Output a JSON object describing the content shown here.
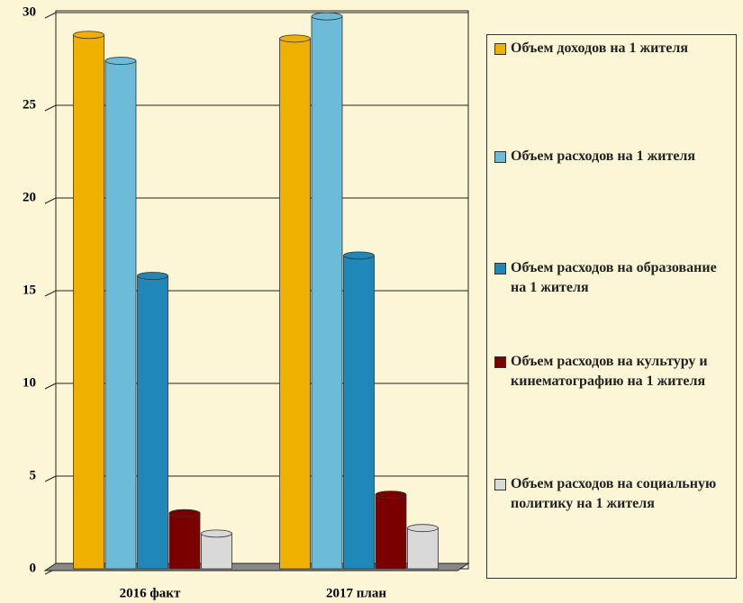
{
  "chart_data": {
    "type": "bar",
    "categories": [
      "2016 факт",
      "2017 план"
    ],
    "series": [
      {
        "name": "Объем доходов на 1 жителя",
        "color": "#f0b000",
        "values": [
          28.8,
          28.6
        ]
      },
      {
        "name": "Объем расходов на 1 жителя",
        "color": "#6cbbd8",
        "values": [
          27.4,
          29.8
        ]
      },
      {
        "name": "Объем расходов на образование на 1 жителя",
        "color": "#1f88b8",
        "values": [
          15.8,
          16.9
        ]
      },
      {
        "name": "Объем расходов на культуру и кинематографию на 1 жителя",
        "color": "#7a0000",
        "values": [
          3.0,
          4.0
        ]
      },
      {
        "name": "Объем расходов на социальную политику на 1 жителя",
        "color": "#d9d9d9",
        "values": [
          1.9,
          2.2
        ]
      }
    ],
    "ylim": [
      0,
      30
    ],
    "yticks": [
      0,
      5,
      10,
      15,
      20,
      25,
      30
    ],
    "grid": true,
    "legend": "right"
  }
}
